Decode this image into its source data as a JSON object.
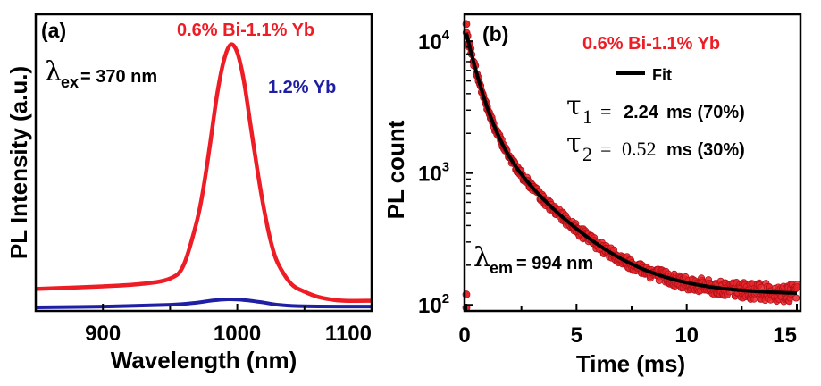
{
  "colors": {
    "bi_yb": "#ee1c24",
    "yb": "#1f1fa6",
    "fit": "#000000",
    "scatter_fill": "#e8262a",
    "scatter_edge": "#b3121a"
  },
  "chart_data": [
    {
      "type": "line",
      "panel_label": "(a)",
      "xlabel": "Wavelength (nm)",
      "ylabel": "PL Intensity (a.u.)",
      "xlim": [
        850,
        1100
      ],
      "x_ticks": [
        "900",
        "1000",
        "1100"
      ],
      "y_ticks_shown": false,
      "excitation_annotation": {
        "symbol": "λ",
        "subscript": "ex",
        "text": "= 370 nm"
      },
      "series": [
        {
          "name": "0.6% Bi-1.1% Yb",
          "color": "#ee1c24",
          "x": [
            850,
            900,
            930,
            950,
            960,
            970,
            975,
            980,
            985,
            990,
            995,
            1000,
            1005,
            1010,
            1015,
            1020,
            1025,
            1030,
            1040,
            1050,
            1060,
            1070,
            1080,
            1100
          ],
          "y": [
            0.07,
            0.08,
            0.09,
            0.11,
            0.16,
            0.33,
            0.46,
            0.63,
            0.81,
            0.94,
            1.0,
            0.97,
            0.86,
            0.69,
            0.52,
            0.37,
            0.25,
            0.17,
            0.09,
            0.06,
            0.04,
            0.03,
            0.025,
            0.025
          ]
        },
        {
          "name": "1.2% Yb",
          "color": "#1f1fa6",
          "x": [
            850,
            900,
            950,
            970,
            980,
            990,
            1000,
            1010,
            1020,
            1030,
            1050,
            1100
          ],
          "y": [
            0.0,
            0.003,
            0.01,
            0.018,
            0.025,
            0.03,
            0.03,
            0.025,
            0.018,
            0.01,
            0.004,
            0.003
          ]
        }
      ]
    },
    {
      "type": "scatter",
      "panel_label": "(b)",
      "xlabel": "Time (ms)",
      "ylabel": "PL count",
      "xlim": [
        0,
        15
      ],
      "ylim": [
        90,
        16000
      ],
      "yscale": "log",
      "x_ticks": [
        "0",
        "5",
        "10",
        "15"
      ],
      "y_ticks": [
        {
          "base": "10",
          "exp": "2",
          "value": 100
        },
        {
          "base": "10",
          "exp": "3",
          "value": 1000
        },
        {
          "base": "10",
          "exp": "4",
          "value": 10000
        }
      ],
      "emission_annotation": {
        "symbol": "λ",
        "subscript": "em",
        "text": "= 994 nm"
      },
      "legend": [
        {
          "name": "0.6% Bi-1.1% Yb",
          "color": "#ee1c24"
        },
        {
          "name": "Fit",
          "color": "#000000"
        }
      ],
      "fit_results": [
        {
          "symbol": "τ",
          "index": "1",
          "equals": "=",
          "value": "2.24",
          "text": "ms (70%)"
        },
        {
          "symbol": "τ",
          "index": "2",
          "equals": "=",
          "value": "0.52",
          "text": "ms (30%)"
        }
      ],
      "fit_model": {
        "baseline": 120,
        "components": [
          {
            "amplitude": 2400,
            "tau": 2.24
          },
          {
            "amplitude": 9000,
            "tau": 0.52
          }
        ]
      },
      "outliers": [
        {
          "x": 0.0,
          "y": 13500
        },
        {
          "x": 0.0,
          "y": 120
        },
        {
          "x": 0.0,
          "y": 95
        }
      ],
      "sampling": {
        "x_start": 0.0,
        "x_end": 15.0,
        "step": 0.05
      }
    }
  ]
}
